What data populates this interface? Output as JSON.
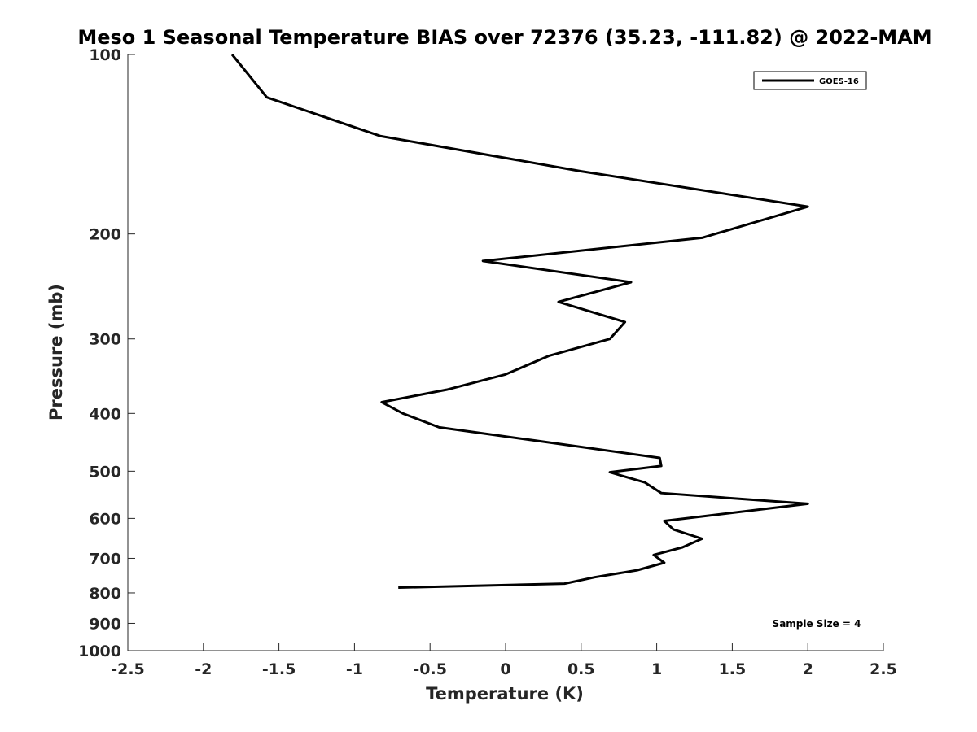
{
  "chart_data": {
    "type": "line",
    "title": "Meso 1 Seasonal Temperature BIAS over 72376 (35.23, -111.82) @ 2022-MAM",
    "xlabel": "Temperature (K)",
    "ylabel": "Pressure (mb)",
    "xlim": [
      -2.5,
      2.5
    ],
    "ylim": [
      100,
      1000
    ],
    "y_scale": "log",
    "y_reversed": true,
    "x_ticks": [
      -2.5,
      -2,
      -1.5,
      -1,
      -0.5,
      0,
      0.5,
      1,
      1.5,
      2,
      2.5
    ],
    "x_tick_labels": [
      "-2.5",
      "-2",
      "-1.5",
      "-1",
      "-0.5",
      "0",
      "0.5",
      "1",
      "1.5",
      "2",
      "2.5"
    ],
    "y_ticks": [
      100,
      200,
      300,
      400,
      500,
      600,
      700,
      800,
      900,
      1000
    ],
    "y_tick_labels": [
      "100",
      "200",
      "300",
      "400",
      "500",
      "600",
      "700",
      "800",
      "900",
      "1000"
    ],
    "grid": false,
    "legend_position": "top-right",
    "annotation": "Sample Size = 4",
    "series": [
      {
        "name": "GOES-16",
        "color": "#000000",
        "x": [
          -1.81,
          -1.58,
          -0.83,
          0.5,
          2.0,
          1.3,
          -0.15,
          0.83,
          0.35,
          0.79,
          0.69,
          0.29,
          0.0,
          -0.39,
          -0.82,
          -0.68,
          -0.44,
          0.19,
          1.02,
          1.03,
          0.69,
          0.92,
          1.03,
          2.0,
          1.05,
          1.11,
          1.3,
          1.17,
          0.98,
          1.05,
          0.87,
          0.59,
          0.39,
          -0.71
        ],
        "y": [
          100,
          118,
          137,
          157,
          180,
          203,
          222,
          241,
          260,
          281,
          300,
          320,
          344,
          365,
          383,
          400,
          422,
          444,
          475,
          490,
          502,
          522,
          544,
          567,
          606,
          626,
          649,
          671,
          691,
          712,
          733,
          753,
          772,
          784
        ]
      }
    ]
  }
}
